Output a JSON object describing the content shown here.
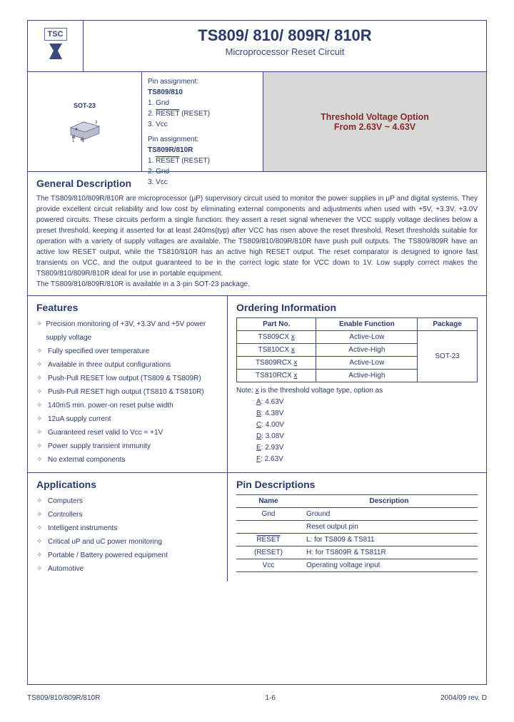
{
  "colors": {
    "border": "#3a4a7a",
    "text": "#2a3a6a",
    "highlight_bg": "#d8d8d8",
    "highlight_text": "#8a2a2a"
  },
  "logo": {
    "top": "TSC",
    "symbol": "⟆"
  },
  "title": {
    "main": "TS809/ 810/ 809R/ 810R",
    "sub": "Microprocessor Reset Circuit"
  },
  "package": {
    "label": "SOT-23"
  },
  "pins": {
    "h1": "Pin assignment:",
    "p1": "TS809/810",
    "a1": "1.  Gnd",
    "a2_pre": "2.  ",
    "a2_ov": "RESET",
    "a2_post": " (RESET)",
    "a3": "3.  Vcc",
    "p2": "TS809R/810R",
    "b1_pre": "1.  ",
    "b1_ov": "RESET",
    "b1_post": " (RESET)",
    "b2": "2.  Gnd",
    "b3": "3.  Vcc"
  },
  "highlight": {
    "l1": "Threshold Voltage Option",
    "l2": "From 2.63V ~ 4.63V"
  },
  "sections": {
    "desc_title": "General Description",
    "desc_text": "The TS809/810/809R/810R are microprocessor (μP) supervisory circuit used to monitor the power supplies in μP and digital systems. They provide excellent circuit reliability and low cost by eliminating external components and adjustments when used with +5V, +3.3V, +3.0V powered circuits. These circuits perform a single function: they assert a reset signal whenever the VCC supply voltage declines below a preset threshold, keeping it asserted for at least 240ms(typ) after VCC has risen above the reset threshold. Reset thresholds suitable for operation with a variety of supply voltages are available. The TS809/810/809R/810R have push pull outputs. The TS809/809R have an active low RESET output, while the TS810/810R has an active high RESET output. The reset comparator is designed to ignore fast transients on VCC, and the output guaranteed to be in the correct logic state for VCC down to 1V. Low supply correct makes the TS809/810/809R/810R ideal for use in portable equipment.",
    "desc_text2": "The TS809/810/809R/810R is available in a 3-pin SOT-23 package.",
    "features_title": "Features",
    "ordering_title": "Ordering Information",
    "apps_title": "Applications",
    "pindesc_title": "Pin Descriptions"
  },
  "features": [
    "Precision monitoring of +3V, +3.3V and +5V power supply voltage",
    "Fully specified over temperature",
    "Available in three output configurations",
    "Push-Pull RESET low output (TS809 & TS809R)",
    "Push-Pull RESET high output (TS810 & TS810R)",
    "140mS min. power-on reset pulse width",
    "12uA supply current",
    "Guaranteed reset valid to Vcc = +1V",
    "Power supply transient immunity",
    "No external components"
  ],
  "ordering": {
    "headers": [
      "Part No.",
      "Enable Function",
      "Package"
    ],
    "rows": [
      {
        "part": "TS809CX",
        "suf": "x",
        "func": "Active-Low"
      },
      {
        "part": "TS810CX",
        "suf": "x",
        "func": "Active-High"
      },
      {
        "part": "TS809RCX",
        "suf": "x",
        "func": "Active-Low"
      },
      {
        "part": "TS810RCX",
        "suf": "x",
        "func": "Active-High"
      }
    ],
    "pkg": "SOT-23",
    "note_label": "Note: ",
    "note_x": "x",
    "note_text": " is the threshold voltage type, option as",
    "opts": [
      {
        "k": "A",
        "v": ": 4.63V"
      },
      {
        "k": "B",
        "v": ": 4.38V"
      },
      {
        "k": "C",
        "v": ": 4.00V"
      },
      {
        "k": "D",
        "v": ": 3.08V"
      },
      {
        "k": "E",
        "v": ": 2.93V"
      },
      {
        "k": "F",
        "v": ": 2.63V"
      }
    ]
  },
  "applications": [
    "Computers",
    "Controllers",
    "Intelligent instruments",
    "Critical uP and uC power monitoring",
    "Portable / Battery powered equipment",
    "Automotive"
  ],
  "pindesc": {
    "headers": [
      "Name",
      "Description"
    ],
    "rows": [
      {
        "name": "Gnd",
        "desc": "Ground"
      },
      {
        "name": "",
        "desc": "Reset output pin"
      },
      {
        "name_ov": "RESET",
        "desc": "L: for TS809 & TS811"
      },
      {
        "name_paren": "(RESET)",
        "desc": "H: for TS809R & TS811R"
      },
      {
        "name": "Vcc",
        "desc": "Operating voltage input"
      }
    ]
  },
  "footer": {
    "left": "TS809/810/809R/810R",
    "center": "1-6",
    "right": "2004/09 rev. D"
  }
}
